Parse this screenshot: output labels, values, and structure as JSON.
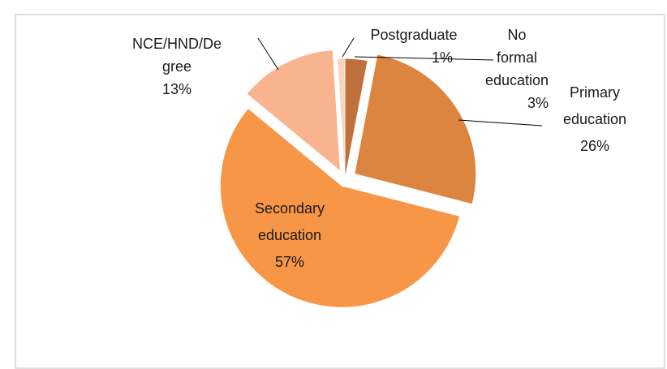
{
  "chart_data": {
    "type": "pie",
    "categories": [
      "No formal education",
      "Primary education",
      "Secondary education",
      "NCE/HND/Degree",
      "Postgraduate"
    ],
    "values": [
      3,
      26,
      57,
      13,
      1
    ],
    "value_labels": [
      "3%",
      "26%",
      "57%",
      "13%",
      "1%"
    ],
    "colors": [
      "#c0703a",
      "#dc8540",
      "#f79646",
      "#f9b48f",
      "#fbd4c0"
    ]
  }
}
